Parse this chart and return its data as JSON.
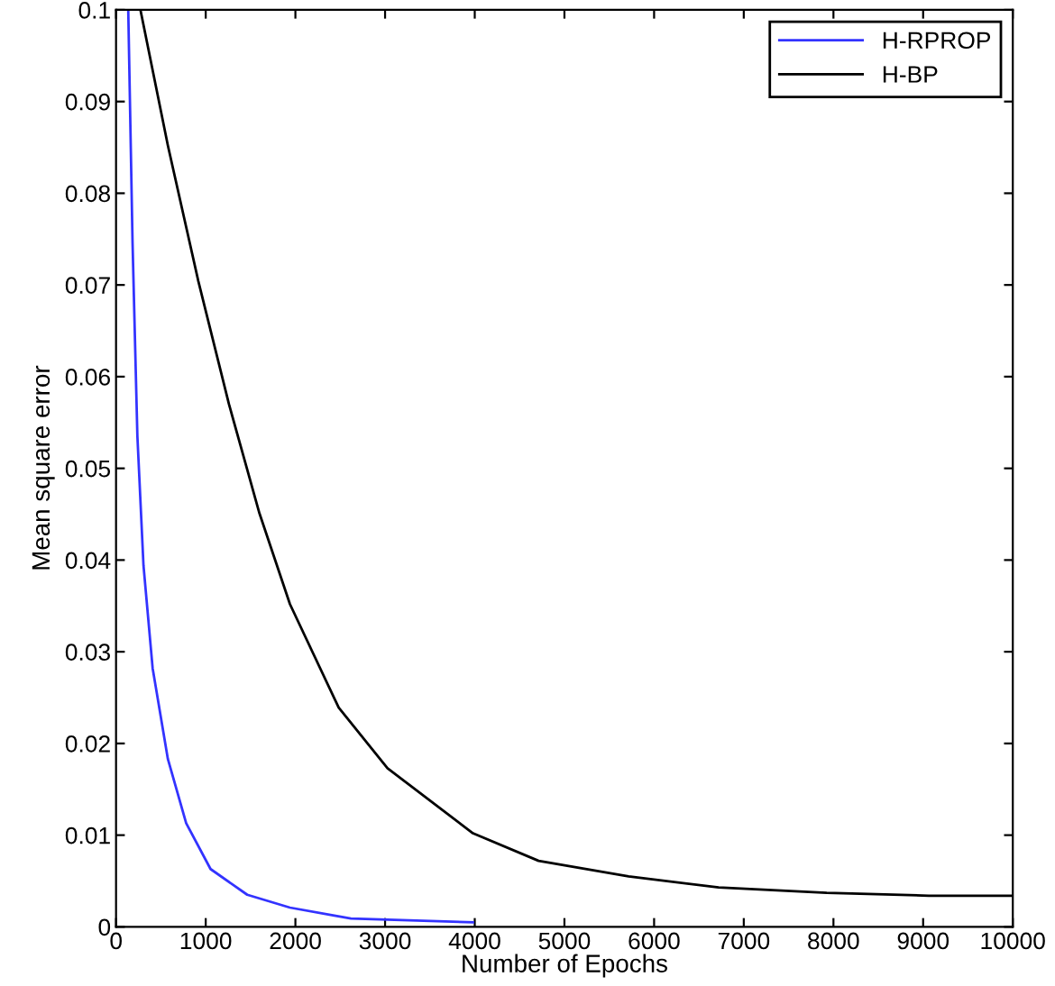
{
  "chart_data": {
    "type": "line",
    "xlabel": "Number of Epochs",
    "ylabel": "Mean square error",
    "xlim": [
      0,
      10000
    ],
    "ylim": [
      0,
      0.1
    ],
    "xticks": [
      0,
      1000,
      2000,
      3000,
      4000,
      5000,
      6000,
      7000,
      8000,
      9000,
      10000
    ],
    "yticks": [
      0,
      0.01,
      0.02,
      0.03,
      0.04,
      0.05,
      0.06,
      0.07,
      0.08,
      0.09,
      0.1
    ],
    "grid": false,
    "legend": "top right",
    "series": [
      {
        "name": "H-RPROP",
        "color": "#3333ff",
        "x": [
          136,
          184,
          238,
          306,
          408,
          578,
          782,
          1054,
          1463,
          1939,
          2619,
          3980
        ],
        "values": [
          0.1,
          0.0746,
          0.0535,
          0.0394,
          0.0282,
          0.0183,
          0.0113,
          0.0063,
          0.0035,
          0.0021,
          0.0009,
          0.0005
        ]
      },
      {
        "name": "H-BP",
        "color": "#000000",
        "x": [
          272,
          578,
          918,
          1259,
          1599,
          1939,
          2483,
          3027,
          3980,
          4712,
          5716,
          6720,
          7925,
          9063,
          10000
        ],
        "values": [
          0.1,
          0.0852,
          0.0704,
          0.057,
          0.0451,
          0.0352,
          0.0239,
          0.0173,
          0.0102,
          0.0072,
          0.0055,
          0.0043,
          0.0037,
          0.0034,
          0.0034
        ]
      }
    ]
  }
}
